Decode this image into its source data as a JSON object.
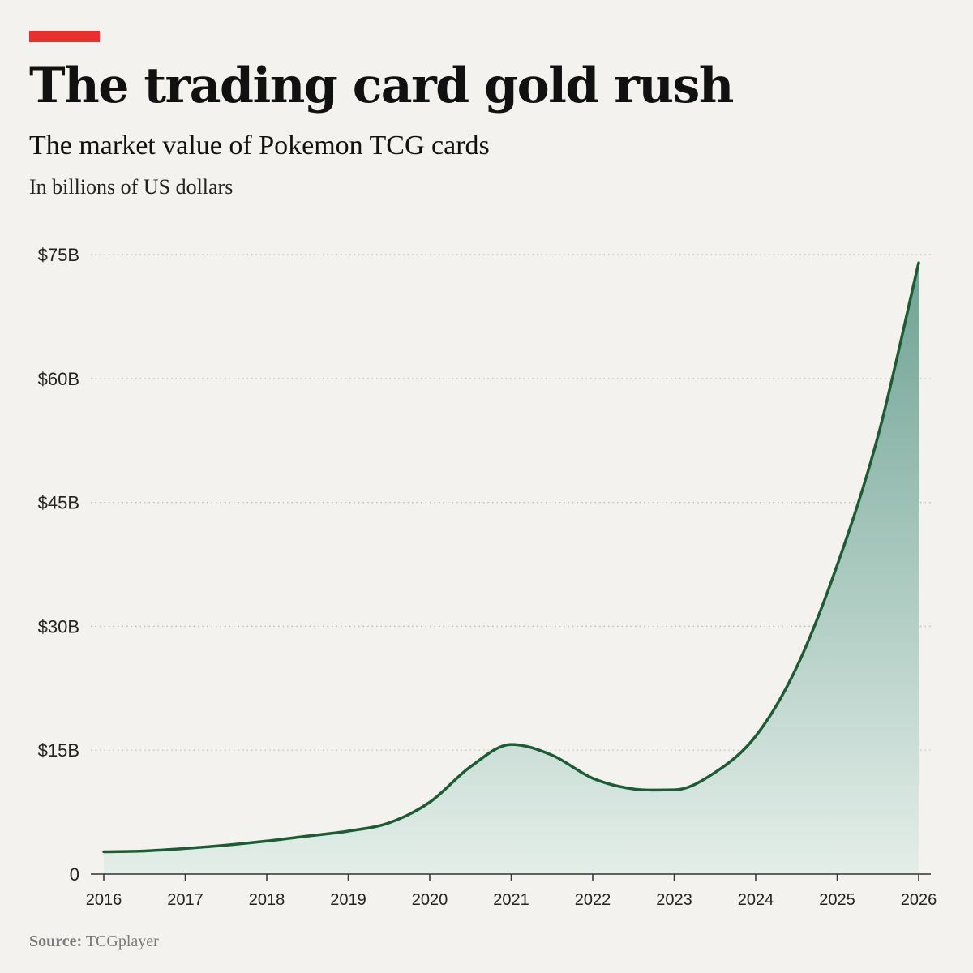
{
  "header": {
    "title": "The trading card gold rush",
    "subtitle": "The market value of Pokemon TCG cards",
    "unit_note": "In billions of US dollars"
  },
  "footer": {
    "source_label": "Source:",
    "source_value": "TCGplayer"
  },
  "colors": {
    "accent": "#e8312f",
    "line": "#1a5c34",
    "fill_top": "#6fa394",
    "fill_bottom": "#e4eee9",
    "grid": "#b9b9b9",
    "axis": "#333333"
  },
  "chart_data": {
    "type": "area",
    "title": "The trading card gold rush",
    "subtitle": "The market value of Pokemon TCG cards",
    "xlabel": "",
    "ylabel": "In billions of US dollars",
    "x": [
      2016,
      2016.5,
      2017,
      2017.5,
      2018,
      2018.5,
      2019,
      2019.5,
      2020,
      2020.5,
      2021,
      2021.5,
      2022,
      2022.5,
      2023,
      2023.5,
      2024,
      2024.5,
      2025,
      2025.5,
      2026
    ],
    "series": [
      {
        "values": [
          2.7,
          2.8,
          3.1,
          3.5,
          4.0,
          4.6,
          5.2,
          6.2,
          8.7,
          13.0,
          15.7,
          14.4,
          11.6,
          10.3,
          10.2,
          12.3,
          16.7,
          25.0,
          37.4,
          53.0,
          74.0
        ]
      }
    ],
    "xlim": [
      2016,
      2026
    ],
    "ylim": [
      0,
      75
    ],
    "yticks": [
      0,
      15,
      30,
      45,
      60,
      75
    ],
    "ytick_labels": [
      "0",
      "$15B",
      "$30B",
      "$45B",
      "$60B",
      "$75B"
    ],
    "xticks": [
      2016,
      2017,
      2018,
      2019,
      2020,
      2021,
      2022,
      2023,
      2024,
      2025,
      2026
    ],
    "xtick_labels": [
      "2016",
      "2017",
      "2018",
      "2019",
      "2020",
      "2021",
      "2022",
      "2023",
      "2024",
      "2025",
      "2026"
    ],
    "grid": "horizontal-dotted",
    "legend": "none"
  }
}
